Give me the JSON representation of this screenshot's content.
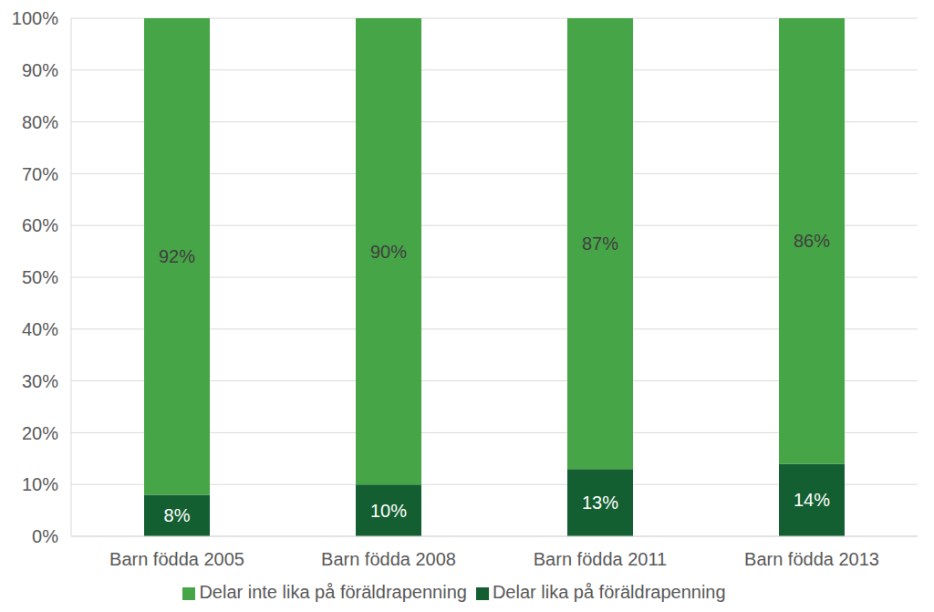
{
  "chart_data": {
    "type": "bar",
    "stacked": true,
    "data_labels": true,
    "grid": true,
    "legend": "bottom",
    "categories": [
      "Barn födda 2005",
      "Barn födda 2008",
      "Barn födda 2011",
      "Barn födda 2013"
    ],
    "series": [
      {
        "name": "Delar lika på föräldrapenning",
        "color": "#145f32",
        "values": [
          8,
          10,
          13,
          14
        ],
        "value_labels": [
          "8%",
          "10%",
          "13%",
          "14%"
        ]
      },
      {
        "name": "Delar inte lika på föräldrapenning",
        "color": "#46a546",
        "values": [
          92,
          90,
          87,
          86
        ],
        "value_labels": [
          "92%",
          "90%",
          "87%",
          "86%"
        ]
      }
    ],
    "ylim": [
      0,
      100
    ],
    "yticks": [
      {
        "value": 0,
        "label": "0%"
      },
      {
        "value": 10,
        "label": "10%"
      },
      {
        "value": 20,
        "label": "20%"
      },
      {
        "value": 30,
        "label": "30%"
      },
      {
        "value": 40,
        "label": "40%"
      },
      {
        "value": 50,
        "label": "50%"
      },
      {
        "value": 60,
        "label": "60%"
      },
      {
        "value": 70,
        "label": "70%"
      },
      {
        "value": 80,
        "label": "80%"
      },
      {
        "value": 90,
        "label": "90%"
      },
      {
        "value": 100,
        "label": "100%"
      }
    ]
  }
}
